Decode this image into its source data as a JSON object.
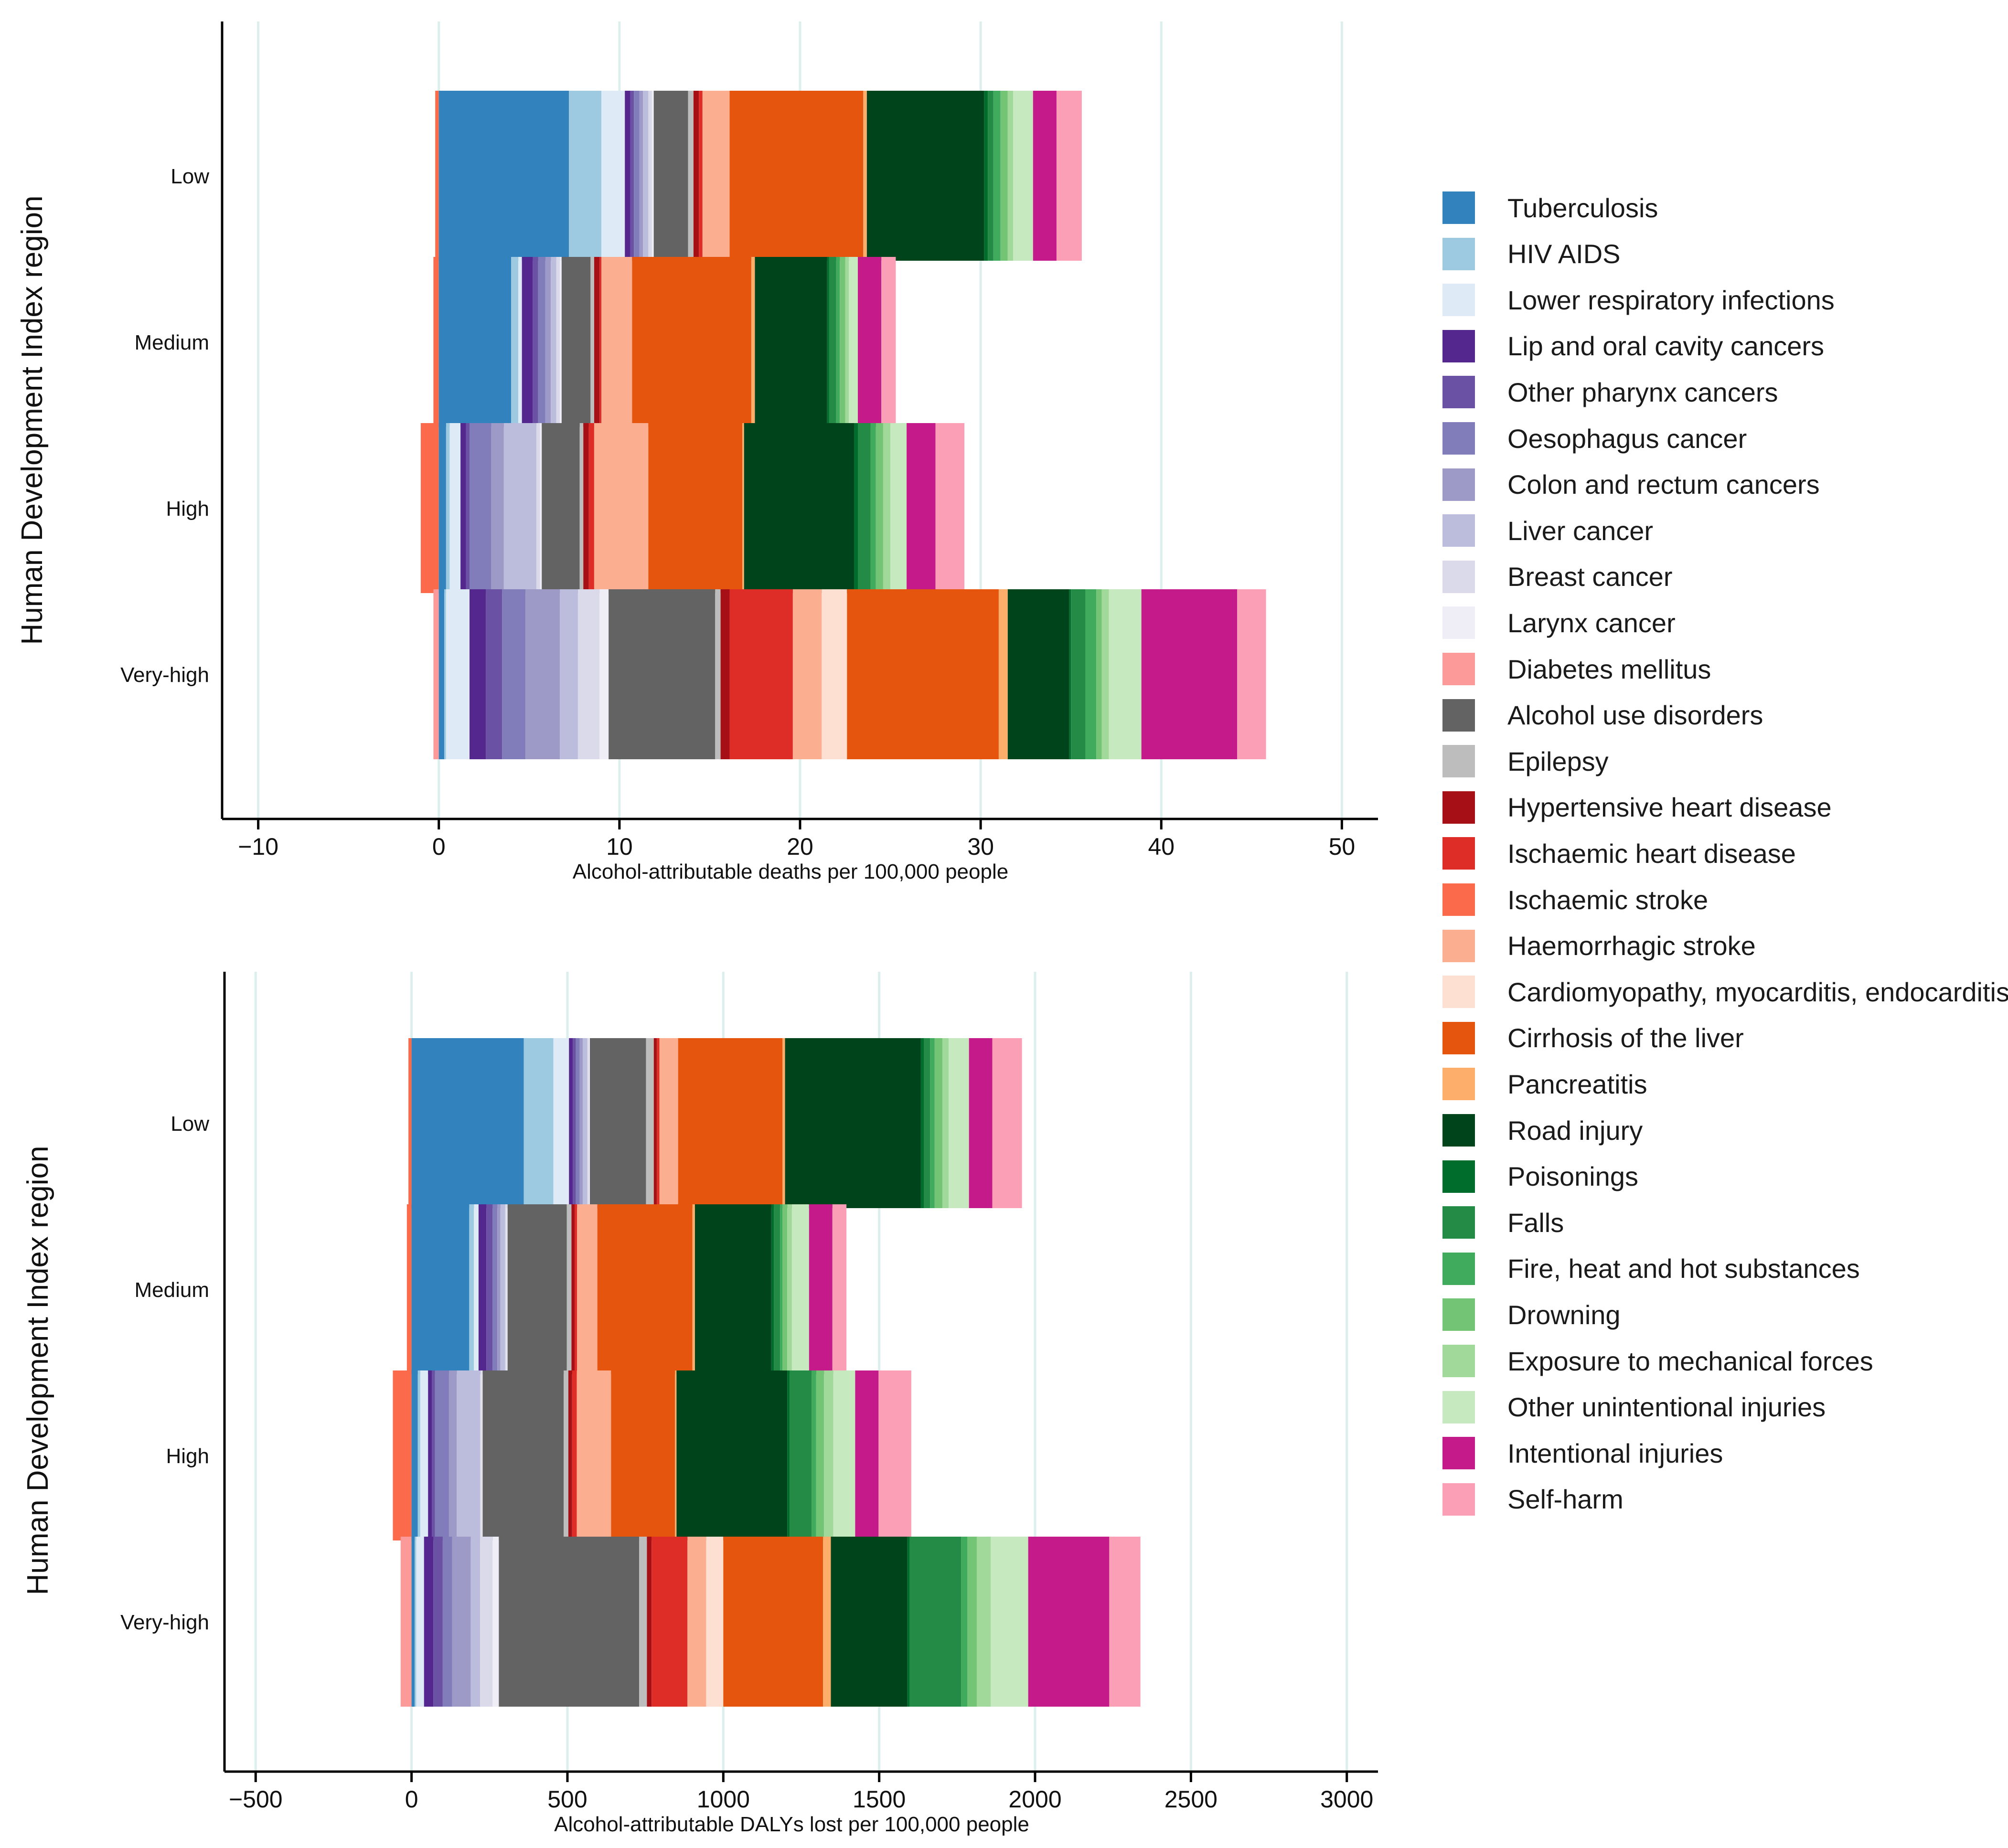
{
  "causes": [
    {
      "name": "Tuberculosis",
      "color": "#3182bd"
    },
    {
      "name": "HIV AIDS",
      "color": "#9ecae1"
    },
    {
      "name": "Lower respiratory infections",
      "color": "#deebf7"
    },
    {
      "name": "Lip and oral cavity cancers",
      "color": "#54278f"
    },
    {
      "name": "Other pharynx cancers",
      "color": "#6a51a3"
    },
    {
      "name": "Oesophagus cancer",
      "color": "#807dba"
    },
    {
      "name": "Colon and rectum cancers",
      "color": "#9e9ac8"
    },
    {
      "name": "Liver cancer",
      "color": "#bcbddc"
    },
    {
      "name": "Breast cancer",
      "color": "#dadaeb"
    },
    {
      "name": "Larynx cancer",
      "color": "#efedf5"
    },
    {
      "name": "Diabetes mellitus",
      "color": "#fb9a99"
    },
    {
      "name": "Alcohol use disorders",
      "color": "#636363"
    },
    {
      "name": "Epilepsy",
      "color": "#bdbdbd"
    },
    {
      "name": "Hypertensive heart disease",
      "color": "#a50f15"
    },
    {
      "name": "Ischaemic heart disease",
      "color": "#de2d26"
    },
    {
      "name": "Ischaemic stroke",
      "color": "#fb6a4a"
    },
    {
      "name": "Haemorrhagic stroke",
      "color": "#fcae91"
    },
    {
      "name": "Cardiomyopathy, myocarditis, endocarditis",
      "color": "#fee0d2"
    },
    {
      "name": "Cirrhosis of the liver",
      "color": "#e6550d"
    },
    {
      "name": "Pancreatitis",
      "color": "#fdae6b"
    },
    {
      "name": "Road injury",
      "color": "#00441b"
    },
    {
      "name": "Poisonings",
      "color": "#006d2c"
    },
    {
      "name": "Falls",
      "color": "#238b45"
    },
    {
      "name": "Fire, heat and hot substances",
      "color": "#41ab5d"
    },
    {
      "name": "Drowning",
      "color": "#74c476"
    },
    {
      "name": "Exposure to mechanical forces",
      "color": "#a1d99b"
    },
    {
      "name": "Other unintentional injuries",
      "color": "#c7e9c0"
    },
    {
      "name": "Intentional injuries",
      "color": "#c51b8a"
    },
    {
      "name": "Self-harm",
      "color": "#fa9fb5"
    }
  ],
  "chart_data": [
    {
      "type": "bar",
      "orientation": "horizontal",
      "stacked": true,
      "title": "",
      "xlabel": "Alcohol-attributable deaths per 100,000 people",
      "ylabel": "Human Development Index region",
      "xlim": [
        -12,
        52
      ],
      "xticks": [
        -10,
        0,
        10,
        20,
        30,
        40,
        50
      ],
      "xtick_labels": [
        "−10",
        "0",
        "10",
        "20",
        "30",
        "40",
        "50"
      ],
      "categories": [
        "Low",
        "Medium",
        "High",
        "Very-high"
      ],
      "negative_segments": [
        {
          "cause": "Ischaemic stroke",
          "values": [
            -0.2,
            -0.3,
            -1.0,
            0
          ]
        },
        {
          "cause": "Diabetes mellitus",
          "values": [
            0,
            0,
            0,
            -0.3
          ]
        }
      ],
      "series": [
        {
          "cause": "Tuberculosis",
          "values": [
            7.2,
            4.0,
            0.4,
            0.3
          ]
        },
        {
          "cause": "HIV AIDS",
          "values": [
            1.8,
            0.4,
            0.2,
            0.1
          ]
        },
        {
          "cause": "Lower respiratory infections",
          "values": [
            1.3,
            0.2,
            0.6,
            1.3
          ]
        },
        {
          "cause": "Lip and oral cavity cancers",
          "values": [
            0.3,
            0.6,
            0.3,
            0.9
          ]
        },
        {
          "cause": "Other pharynx cancers",
          "values": [
            0.2,
            0.3,
            0.2,
            0.9
          ]
        },
        {
          "cause": "Oesophagus cancer",
          "values": [
            0.3,
            0.4,
            1.2,
            1.3
          ]
        },
        {
          "cause": "Colon and rectum cancers",
          "values": [
            0.2,
            0.3,
            0.7,
            1.9
          ]
        },
        {
          "cause": "Liver cancer",
          "values": [
            0.3,
            0.3,
            1.8,
            1.0
          ]
        },
        {
          "cause": "Breast cancer",
          "values": [
            0.2,
            0.2,
            0.2,
            1.2
          ]
        },
        {
          "cause": "Larynx cancer",
          "values": [
            0.1,
            0.1,
            0.1,
            0.5
          ]
        },
        {
          "cause": "Diabetes mellitus",
          "values": [
            0,
            0,
            0,
            0
          ]
        },
        {
          "cause": "Alcohol use disorders",
          "values": [
            1.9,
            1.6,
            2.1,
            5.9
          ]
        },
        {
          "cause": "Epilepsy",
          "values": [
            0.3,
            0.2,
            0.2,
            0.3
          ]
        },
        {
          "cause": "Hypertensive heart disease",
          "values": [
            0.3,
            0.3,
            0.3,
            0.5
          ]
        },
        {
          "cause": "Ischaemic heart disease",
          "values": [
            0.2,
            0.1,
            0.3,
            3.5
          ]
        },
        {
          "cause": "Ischaemic stroke",
          "values": [
            0,
            0,
            0,
            0
          ]
        },
        {
          "cause": "Haemorrhagic stroke",
          "values": [
            1.5,
            1.7,
            3.0,
            1.6
          ]
        },
        {
          "cause": "Cardiomyopathy, myocarditis, endocarditis",
          "values": [
            0,
            0,
            0,
            1.4
          ]
        },
        {
          "cause": "Cirrhosis of the liver",
          "values": [
            7.4,
            6.6,
            5.2,
            8.4
          ]
        },
        {
          "cause": "Pancreatitis",
          "values": [
            0.2,
            0.2,
            0.1,
            0.5
          ]
        },
        {
          "cause": "Road injury",
          "values": [
            6.5,
            4.0,
            6.1,
            3.4
          ]
        },
        {
          "cause": "Poisonings",
          "values": [
            0.2,
            0.1,
            0.2,
            0.1
          ]
        },
        {
          "cause": "Falls",
          "values": [
            0.3,
            0.4,
            0.7,
            0.8
          ]
        },
        {
          "cause": "Fire, heat and hot substances",
          "values": [
            0.4,
            0.2,
            0.3,
            0.6
          ]
        },
        {
          "cause": "Drowning",
          "values": [
            0.4,
            0.3,
            0.4,
            0.3
          ]
        },
        {
          "cause": "Exposure to mechanical forces",
          "values": [
            0.3,
            0.2,
            0.4,
            0.4
          ]
        },
        {
          "cause": "Other unintentional injuries",
          "values": [
            1.1,
            0.5,
            0.9,
            1.8
          ]
        },
        {
          "cause": "Intentional injuries",
          "values": [
            1.3,
            1.3,
            1.6,
            5.3
          ]
        },
        {
          "cause": "Self-harm",
          "values": [
            1.4,
            0.8,
            1.6,
            1.6
          ]
        }
      ]
    },
    {
      "type": "bar",
      "orientation": "horizontal",
      "stacked": true,
      "title": "",
      "xlabel": "Alcohol-attributable DALYs lost per 100,000 people",
      "ylabel": "Human Development Index region",
      "xlim": [
        -600,
        3100
      ],
      "xticks": [
        -500,
        0,
        500,
        1000,
        1500,
        2000,
        2500,
        3000
      ],
      "xtick_labels": [
        "−500",
        "0",
        "500",
        "1000",
        "1500",
        "2000",
        "2500",
        "3000"
      ],
      "categories": [
        "Low",
        "Medium",
        "High",
        "Very-high"
      ],
      "negative_segments": [
        {
          "cause": "Ischaemic stroke",
          "values": [
            -10,
            -15,
            -60,
            0
          ]
        },
        {
          "cause": "Diabetes mellitus",
          "values": [
            0,
            0,
            0,
            -35
          ]
        }
      ],
      "series": [
        {
          "cause": "Tuberculosis",
          "values": [
            360,
            185,
            20,
            10
          ]
        },
        {
          "cause": "HIV AIDS",
          "values": [
            95,
            15,
            8,
            5
          ]
        },
        {
          "cause": "Lower respiratory infections",
          "values": [
            50,
            15,
            25,
            25
          ]
        },
        {
          "cause": "Lip and oral cavity cancers",
          "values": [
            12,
            25,
            12,
            30
          ]
        },
        {
          "cause": "Other pharynx cancers",
          "values": [
            10,
            20,
            10,
            30
          ]
        },
        {
          "cause": "Oesophagus cancer",
          "values": [
            12,
            15,
            45,
            30
          ]
        },
        {
          "cause": "Colon and rectum cancers",
          "values": [
            10,
            10,
            25,
            60
          ]
        },
        {
          "cause": "Liver cancer",
          "values": [
            15,
            15,
            75,
            30
          ]
        },
        {
          "cause": "Breast cancer",
          "values": [
            5,
            5,
            5,
            40
          ]
        },
        {
          "cause": "Larynx cancer",
          "values": [
            3,
            3,
            3,
            20
          ]
        },
        {
          "cause": "Diabetes mellitus",
          "values": [
            0,
            0,
            0,
            0
          ]
        },
        {
          "cause": "Alcohol use disorders",
          "values": [
            180,
            190,
            260,
            450
          ]
        },
        {
          "cause": "Epilepsy",
          "values": [
            25,
            15,
            15,
            25
          ]
        },
        {
          "cause": "Hypertensive heart disease",
          "values": [
            10,
            10,
            12,
            15
          ]
        },
        {
          "cause": "Ischaemic heart disease",
          "values": [
            8,
            8,
            15,
            115
          ]
        },
        {
          "cause": "Ischaemic stroke",
          "values": [
            0,
            0,
            0,
            0
          ]
        },
        {
          "cause": "Haemorrhagic stroke",
          "values": [
            60,
            65,
            110,
            60
          ]
        },
        {
          "cause": "Cardiomyopathy, myocarditis, endocarditis",
          "values": [
            0,
            0,
            0,
            55
          ]
        },
        {
          "cause": "Cirrhosis of the liver",
          "values": [
            335,
            305,
            205,
            320
          ]
        },
        {
          "cause": "Pancreatitis",
          "values": [
            8,
            8,
            5,
            25
          ]
        },
        {
          "cause": "Road injury",
          "values": [
            435,
            245,
            355,
            245
          ]
        },
        {
          "cause": "Poisonings",
          "values": [
            10,
            8,
            8,
            8
          ]
        },
        {
          "cause": "Falls",
          "values": [
            20,
            20,
            70,
            165
          ]
        },
        {
          "cause": "Fire, heat and hot substances",
          "values": [
            15,
            8,
            15,
            20
          ]
        },
        {
          "cause": "Drowning",
          "values": [
            25,
            15,
            25,
            30
          ]
        },
        {
          "cause": "Exposure to mechanical forces",
          "values": [
            20,
            15,
            30,
            45
          ]
        },
        {
          "cause": "Other unintentional injuries",
          "values": [
            65,
            55,
            70,
            120
          ]
        },
        {
          "cause": "Intentional injuries",
          "values": [
            75,
            75,
            75,
            260
          ]
        },
        {
          "cause": "Self-harm",
          "values": [
            95,
            45,
            105,
            100
          ]
        }
      ]
    }
  ]
}
